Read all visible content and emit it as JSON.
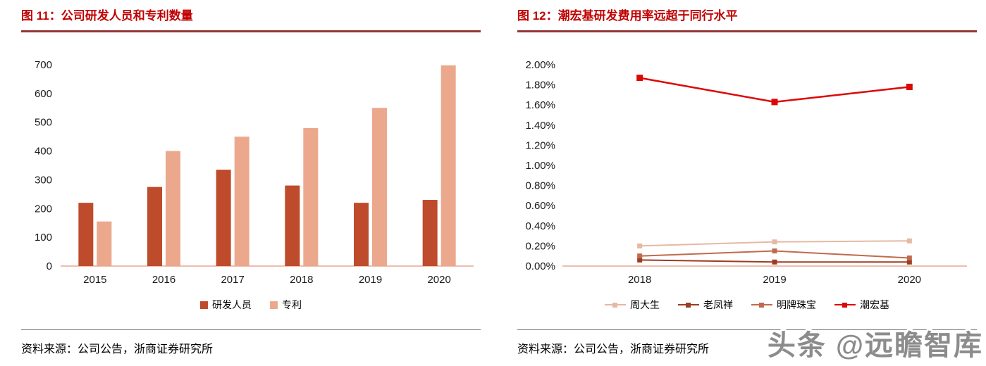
{
  "watermark": "头条 @远瞻智库",
  "panels": {
    "left": {
      "title": "图 11：公司研发人员和专利数量",
      "source": "资料来源：公司公告，浙商证券研究所"
    },
    "right": {
      "title": "图 12：潮宏基研发费用率远超于同行水平",
      "source": "资料来源：公司公告，浙商证券研究所"
    }
  },
  "colors": {
    "title_red": "#C00000",
    "title_rule": "#943634",
    "axis_line": "#E8A791",
    "source_rule": "#7F7F7F",
    "watermark_gray": "#8C8C8C"
  },
  "chart_data": [
    {
      "type": "bar",
      "title": "公司研发人员和专利数量",
      "categories": [
        "2015",
        "2016",
        "2017",
        "2018",
        "2019",
        "2020"
      ],
      "series": [
        {
          "name": "研发人员",
          "color": "#BE4B2B",
          "values": [
            220,
            275,
            335,
            280,
            220,
            230
          ]
        },
        {
          "name": "专利",
          "color": "#EBA88D",
          "values": [
            155,
            400,
            450,
            480,
            550,
            698
          ]
        }
      ],
      "xlabel": "",
      "ylabel": "",
      "ylim": [
        0,
        700
      ],
      "ytick": 100,
      "grid": false,
      "legend_position": "bottom"
    },
    {
      "type": "line",
      "title": "潮宏基研发费用率远超于同行水平",
      "x": [
        "2018",
        "2019",
        "2020"
      ],
      "series": [
        {
          "name": "周大生",
          "color": "#E5B9A3",
          "values": [
            0.2,
            0.24,
            0.25
          ]
        },
        {
          "name": "老凤祥",
          "color": "#9E3B23",
          "values": [
            0.06,
            0.04,
            0.04
          ]
        },
        {
          "name": "明牌珠宝",
          "color": "#C16A4B",
          "values": [
            0.1,
            0.15,
            0.08
          ]
        },
        {
          "name": "潮宏基",
          "color": "#DD0806",
          "values": [
            1.87,
            1.63,
            1.78
          ],
          "emphasis": true
        }
      ],
      "xlabel": "",
      "ylabel": "",
      "ylim": [
        0,
        2.0
      ],
      "ytick": 0.2,
      "ytick_format": "percent2",
      "grid": false,
      "legend_position": "bottom"
    }
  ]
}
